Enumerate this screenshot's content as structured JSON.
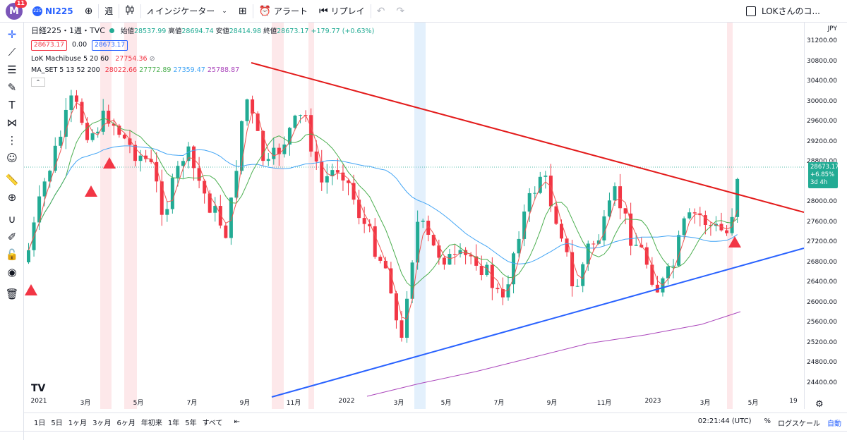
{
  "topbar": {
    "avatar_letter": "M",
    "notification_count": "11",
    "symbol_badge": "225",
    "symbol": "NI225",
    "interval": "週",
    "indicators_label": "インジケーター",
    "alert_label": "アラート",
    "replay_label": "リプレイ",
    "layout_name": "LOKさんのコ..."
  },
  "legend": {
    "title": "日経225・1週・TVC",
    "open_label": "始値",
    "open": "28537.99",
    "high_label": "高値",
    "high": "28694.74",
    "low_label": "安値",
    "low": "28414.98",
    "close_label": "終値",
    "close": "28673.17",
    "change": "+179.77 (+0.63%)",
    "bid": "28673.17",
    "spread": "0.00",
    "ask": "28673.17",
    "ind1_name": "LoK Machibuse 5 20 60",
    "ind1_value": "27754.36",
    "ind2_name": "MA_SET 5 13 52 200",
    "ind2_v1": "28022.66",
    "ind2_v2": "27772.89",
    "ind2_v3": "27359.47",
    "ind2_v4": "25788.87"
  },
  "price_axis": {
    "currency": "JPY",
    "labels": [
      "31200.00",
      "30800.00",
      "30400.00",
      "30000.00",
      "29600.00",
      "29200.00",
      "28800.00",
      "28000.00",
      "27600.00",
      "27200.00",
      "26800.00",
      "26400.00",
      "26000.00",
      "25600.00",
      "25200.00",
      "24800.00",
      "24400.00"
    ],
    "current_price": "28673.17",
    "current_change": "+6.85%",
    "countdown": "3d 4h"
  },
  "time_axis": {
    "labels": [
      "2021",
      "3月",
      "5月",
      "7月",
      "9月",
      "11月",
      "2022",
      "3月",
      "5月",
      "7月",
      "9月",
      "11月",
      "2023",
      "3月",
      "5月",
      "19"
    ]
  },
  "bottombar": {
    "ranges": [
      "1日",
      "5日",
      "1ヶ月",
      "3ヶ月",
      "6ヶ月",
      "年初来",
      "1年",
      "5年",
      "すべて"
    ],
    "clock": "02:21:44 (UTC)",
    "percent": "%",
    "log_scale": "ログスケール",
    "auto": "自動"
  },
  "colors": {
    "up": "#22ab94",
    "down": "#f23645",
    "resistance": "#e31b1b",
    "support": "#2962ff",
    "accent": "#2962ff"
  }
}
